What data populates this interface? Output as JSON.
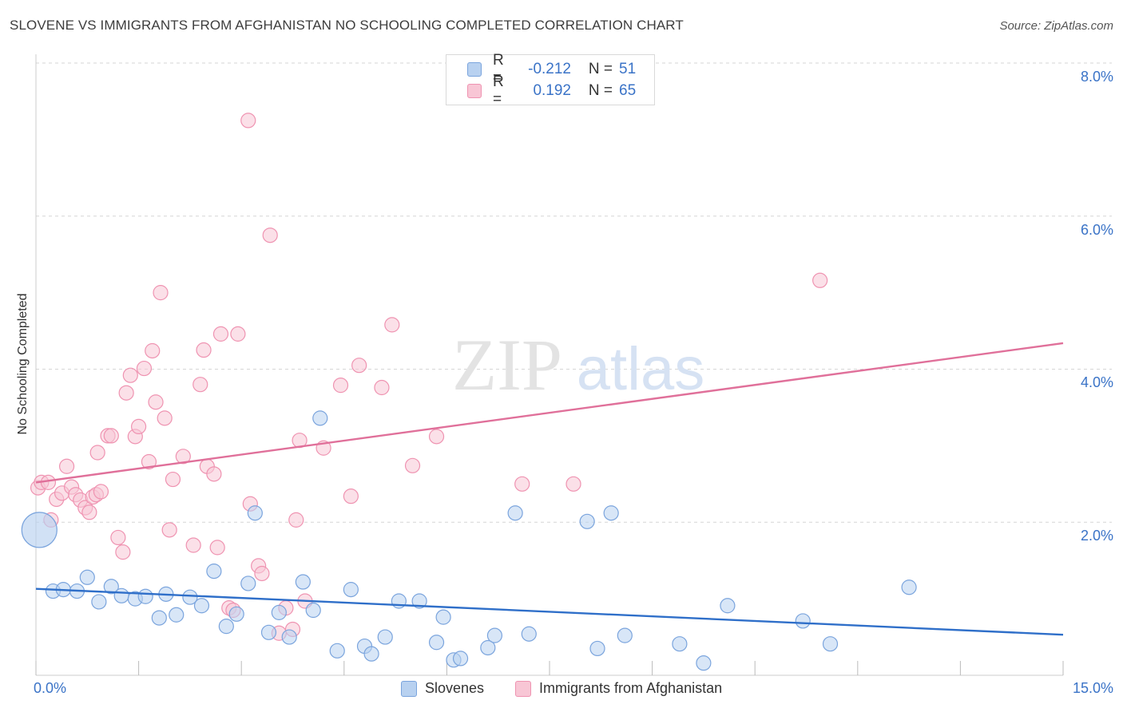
{
  "header": {
    "title": "SLOVENE VS IMMIGRANTS FROM AFGHANISTAN NO SCHOOLING COMPLETED CORRELATION CHART",
    "source": "Source: ZipAtlas.com"
  },
  "watermark": {
    "zip": "ZIP",
    "atlas": "atlas"
  },
  "legend": {
    "slovenes": {
      "r_label": "R =",
      "r_value": "-0.212",
      "n_label": "N =",
      "n_value": "51"
    },
    "afghan": {
      "r_label": "R =",
      "r_value": "0.192",
      "n_label": "N =",
      "n_value": "65"
    }
  },
  "colors": {
    "slovenes_fill": "#b8d1f0",
    "slovenes_stroke": "#7aa4dd",
    "slovenes_line": "#2f6fc9",
    "afghan_fill": "#f8c6d5",
    "afghan_stroke": "#ef93b1",
    "afghan_line": "#e0709a",
    "grid": "#d6d6d6",
    "axis_text": "#3a73c7"
  },
  "chart_data": {
    "type": "scatter",
    "title": "SLOVENE VS IMMIGRANTS FROM AFGHANISTAN NO SCHOOLING COMPLETED CORRELATION CHART",
    "xlabel": "",
    "ylabel": "No Schooling Completed",
    "xlim": [
      0,
      15
    ],
    "ylim": [
      0,
      8.2
    ],
    "x_tick_labels": [
      "0.0%",
      "15.0%"
    ],
    "y_ticks": [
      2,
      4,
      6,
      8
    ],
    "y_tick_labels": [
      "2.0%",
      "4.0%",
      "6.0%",
      "8.0%"
    ],
    "grid": "horizontal dashed",
    "legend_position": "bottom",
    "series": [
      {
        "name": "Slovenes",
        "r": -0.212,
        "n": 51,
        "trend": {
          "x": [
            0,
            15
          ],
          "y": [
            1.13,
            0.53
          ]
        },
        "points": [
          {
            "x": 0.05,
            "y": 1.9,
            "big": true
          },
          {
            "x": 0.25,
            "y": 1.1
          },
          {
            "x": 0.4,
            "y": 1.12
          },
          {
            "x": 0.6,
            "y": 1.1
          },
          {
            "x": 0.75,
            "y": 1.28
          },
          {
            "x": 0.92,
            "y": 0.96
          },
          {
            "x": 1.1,
            "y": 1.16
          },
          {
            "x": 1.25,
            "y": 1.04
          },
          {
            "x": 1.45,
            "y": 1.0
          },
          {
            "x": 1.6,
            "y": 1.03
          },
          {
            "x": 1.8,
            "y": 0.75
          },
          {
            "x": 1.9,
            "y": 1.06
          },
          {
            "x": 2.05,
            "y": 0.79
          },
          {
            "x": 2.25,
            "y": 1.02
          },
          {
            "x": 2.42,
            "y": 0.91
          },
          {
            "x": 2.6,
            "y": 1.36
          },
          {
            "x": 2.78,
            "y": 0.64
          },
          {
            "x": 2.93,
            "y": 0.8
          },
          {
            "x": 3.1,
            "y": 1.2
          },
          {
            "x": 3.2,
            "y": 2.12
          },
          {
            "x": 3.4,
            "y": 0.56
          },
          {
            "x": 3.55,
            "y": 0.82
          },
          {
            "x": 3.7,
            "y": 0.5
          },
          {
            "x": 3.9,
            "y": 1.22
          },
          {
            "x": 4.05,
            "y": 0.85
          },
          {
            "x": 4.15,
            "y": 3.36
          },
          {
            "x": 4.4,
            "y": 0.32
          },
          {
            "x": 4.6,
            "y": 1.12
          },
          {
            "x": 4.8,
            "y": 0.38
          },
          {
            "x": 4.9,
            "y": 0.28
          },
          {
            "x": 5.1,
            "y": 0.5
          },
          {
            "x": 5.3,
            "y": 0.97
          },
          {
            "x": 5.6,
            "y": 0.97
          },
          {
            "x": 5.85,
            "y": 0.43
          },
          {
            "x": 5.95,
            "y": 0.76
          },
          {
            "x": 6.1,
            "y": 0.2
          },
          {
            "x": 6.2,
            "y": 0.22
          },
          {
            "x": 6.6,
            "y": 0.36
          },
          {
            "x": 6.7,
            "y": 0.52
          },
          {
            "x": 7.0,
            "y": 2.12
          },
          {
            "x": 7.2,
            "y": 0.54
          },
          {
            "x": 8.05,
            "y": 2.01
          },
          {
            "x": 8.2,
            "y": 0.35
          },
          {
            "x": 8.4,
            "y": 2.12
          },
          {
            "x": 8.6,
            "y": 0.52
          },
          {
            "x": 9.4,
            "y": 0.41
          },
          {
            "x": 9.75,
            "y": 0.16
          },
          {
            "x": 10.1,
            "y": 0.91
          },
          {
            "x": 11.2,
            "y": 0.71
          },
          {
            "x": 11.6,
            "y": 0.41
          },
          {
            "x": 12.75,
            "y": 1.15
          }
        ]
      },
      {
        "name": "Immigrants from Afghanistan",
        "r": 0.192,
        "n": 65,
        "trend": {
          "x": [
            0,
            15
          ],
          "y": [
            2.52,
            4.34
          ]
        },
        "points": [
          {
            "x": 0.03,
            "y": 2.45
          },
          {
            "x": 0.08,
            "y": 2.52
          },
          {
            "x": 0.18,
            "y": 2.52
          },
          {
            "x": 0.22,
            "y": 2.03
          },
          {
            "x": 0.3,
            "y": 2.3
          },
          {
            "x": 0.38,
            "y": 2.38
          },
          {
            "x": 0.45,
            "y": 2.73
          },
          {
            "x": 0.52,
            "y": 2.46
          },
          {
            "x": 0.58,
            "y": 2.36
          },
          {
            "x": 0.65,
            "y": 2.29
          },
          {
            "x": 0.72,
            "y": 2.19
          },
          {
            "x": 0.78,
            "y": 2.13
          },
          {
            "x": 0.83,
            "y": 2.33
          },
          {
            "x": 0.88,
            "y": 2.36
          },
          {
            "x": 0.9,
            "y": 2.91
          },
          {
            "x": 0.95,
            "y": 2.4
          },
          {
            "x": 1.05,
            "y": 3.13
          },
          {
            "x": 1.1,
            "y": 3.13
          },
          {
            "x": 1.2,
            "y": 1.8
          },
          {
            "x": 1.27,
            "y": 1.61
          },
          {
            "x": 1.32,
            "y": 3.69
          },
          {
            "x": 1.38,
            "y": 3.92
          },
          {
            "x": 1.45,
            "y": 3.12
          },
          {
            "x": 1.5,
            "y": 3.25
          },
          {
            "x": 1.58,
            "y": 4.01
          },
          {
            "x": 1.65,
            "y": 2.79
          },
          {
            "x": 1.7,
            "y": 4.24
          },
          {
            "x": 1.75,
            "y": 3.57
          },
          {
            "x": 1.82,
            "y": 5.0
          },
          {
            "x": 1.88,
            "y": 3.36
          },
          {
            "x": 1.95,
            "y": 1.9
          },
          {
            "x": 2.0,
            "y": 2.56
          },
          {
            "x": 2.15,
            "y": 2.86
          },
          {
            "x": 2.3,
            "y": 1.7
          },
          {
            "x": 2.4,
            "y": 3.8
          },
          {
            "x": 2.45,
            "y": 4.25
          },
          {
            "x": 2.5,
            "y": 2.73
          },
          {
            "x": 2.6,
            "y": 2.63
          },
          {
            "x": 2.65,
            "y": 1.67
          },
          {
            "x": 2.7,
            "y": 4.46
          },
          {
            "x": 2.82,
            "y": 0.88
          },
          {
            "x": 2.88,
            "y": 0.85
          },
          {
            "x": 2.95,
            "y": 4.46
          },
          {
            "x": 3.1,
            "y": 7.25
          },
          {
            "x": 3.13,
            "y": 2.24
          },
          {
            "x": 3.25,
            "y": 1.43
          },
          {
            "x": 3.3,
            "y": 1.33
          },
          {
            "x": 3.42,
            "y": 5.75
          },
          {
            "x": 3.55,
            "y": 0.55
          },
          {
            "x": 3.65,
            "y": 0.88
          },
          {
            "x": 3.75,
            "y": 0.6
          },
          {
            "x": 3.8,
            "y": 2.03
          },
          {
            "x": 3.85,
            "y": 3.07
          },
          {
            "x": 3.93,
            "y": 0.97
          },
          {
            "x": 4.2,
            "y": 2.97
          },
          {
            "x": 4.45,
            "y": 3.79
          },
          {
            "x": 4.6,
            "y": 2.34
          },
          {
            "x": 4.72,
            "y": 4.05
          },
          {
            "x": 5.05,
            "y": 3.76
          },
          {
            "x": 5.2,
            "y": 4.58
          },
          {
            "x": 5.5,
            "y": 2.74
          },
          {
            "x": 5.85,
            "y": 3.12
          },
          {
            "x": 7.1,
            "y": 2.5
          },
          {
            "x": 7.85,
            "y": 2.5
          },
          {
            "x": 11.45,
            "y": 5.16
          }
        ]
      }
    ]
  }
}
